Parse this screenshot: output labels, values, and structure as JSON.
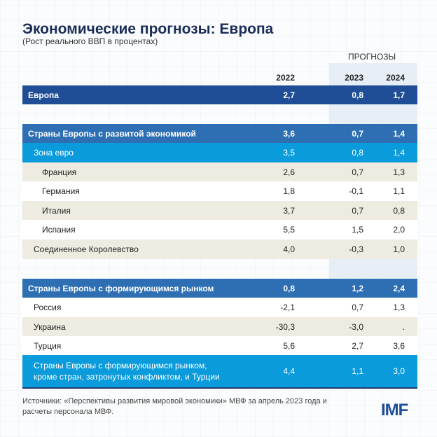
{
  "title": "Экономические прогнозы: Европа",
  "subtitle": "(Рост реального ВВП в процентах)",
  "forecast_label": "ПРОГНОЗЫ",
  "columns": [
    "2022",
    "2023",
    "2024"
  ],
  "rows": [
    {
      "label": "Европа",
      "values": [
        "2,7",
        "0,8",
        "1,7"
      ],
      "style": "dark"
    },
    {
      "label": "Страны Европы с развитой экономикой",
      "values": [
        "3,6",
        "0,7",
        "1,4"
      ],
      "style": "mid"
    },
    {
      "label": "Зона евро",
      "values": [
        "3,5",
        "0,8",
        "1,4"
      ],
      "style": "light"
    },
    {
      "label": "Франция",
      "values": [
        "2,6",
        "0,7",
        "1,3"
      ],
      "style": "beige"
    },
    {
      "label": "Германия",
      "values": [
        "1,8",
        "-0,1",
        "1,1"
      ],
      "style": "white"
    },
    {
      "label": "Италия",
      "values": [
        "3,7",
        "0,7",
        "0,8"
      ],
      "style": "beige"
    },
    {
      "label": "Испания",
      "values": [
        "5,5",
        "1,5",
        "2,0"
      ],
      "style": "white"
    },
    {
      "label": "Соединенное Королевство",
      "values": [
        "4,0",
        "-0,3",
        "1,0"
      ],
      "style": "beige"
    },
    {
      "label": "Страны Европы с формирующимся рынком",
      "values": [
        "0,8",
        "1,2",
        "2,4"
      ],
      "style": "mid"
    },
    {
      "label": "Россия",
      "values": [
        "-2,1",
        "0,7",
        "1,3"
      ],
      "style": "white"
    },
    {
      "label": "Украина",
      "values": [
        "-30,3",
        "-3,0",
        "."
      ],
      "style": "beige"
    },
    {
      "label": "Турция",
      "values": [
        "5,6",
        "2,7",
        "3,6"
      ],
      "style": "white"
    },
    {
      "label": "Страны Европы с формирующимся рынком, кроме стран, затронутых конфликтом, и Турции",
      "values": [
        "4,4",
        "1,1",
        "3,0"
      ],
      "style": "light"
    }
  ],
  "source": "Источники: «Перспективы развития мировой экономики» МВФ за апрель 2023 года и расчеты персонала МВФ.",
  "logo": "IMF",
  "colors": {
    "dark": "#1f4e96",
    "mid": "#2e6fb4",
    "light": "#0a9bdc",
    "beige": "#eeebe0"
  }
}
